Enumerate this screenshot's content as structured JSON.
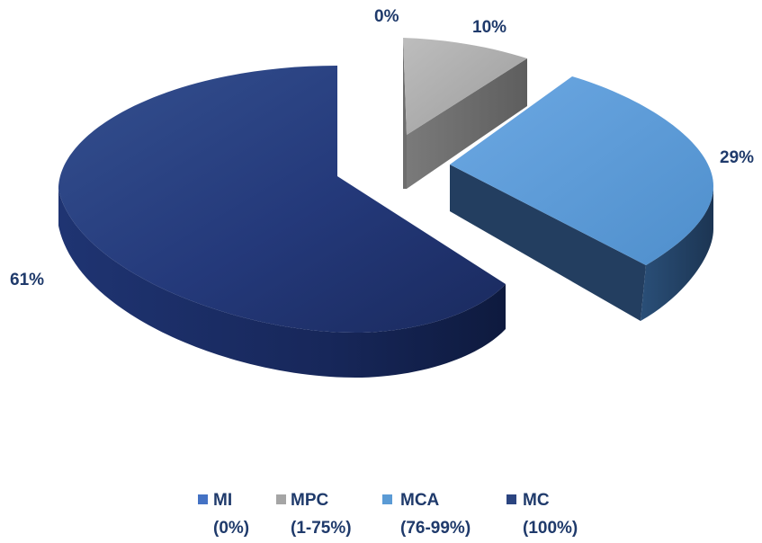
{
  "chart_data": {
    "type": "pie",
    "variant": "3d-exploded",
    "title": "",
    "legend_position": "bottom",
    "label_color": "#1F3A6B",
    "slices": [
      {
        "name": "MI",
        "range": "(0%)",
        "value": 0,
        "label": "0%",
        "color": "#4472C4"
      },
      {
        "name": "MPC",
        "range": "(1-75%)",
        "value": 10,
        "label": "10%",
        "color": "#A5A5A5"
      },
      {
        "name": "MCA",
        "range": "(76-99%)",
        "value": 29,
        "label": "29%",
        "color": "#5B9BD5"
      },
      {
        "name": "MC",
        "range": "(100%)",
        "value": 61,
        "label": "61%",
        "color": "#2B4480"
      }
    ]
  }
}
